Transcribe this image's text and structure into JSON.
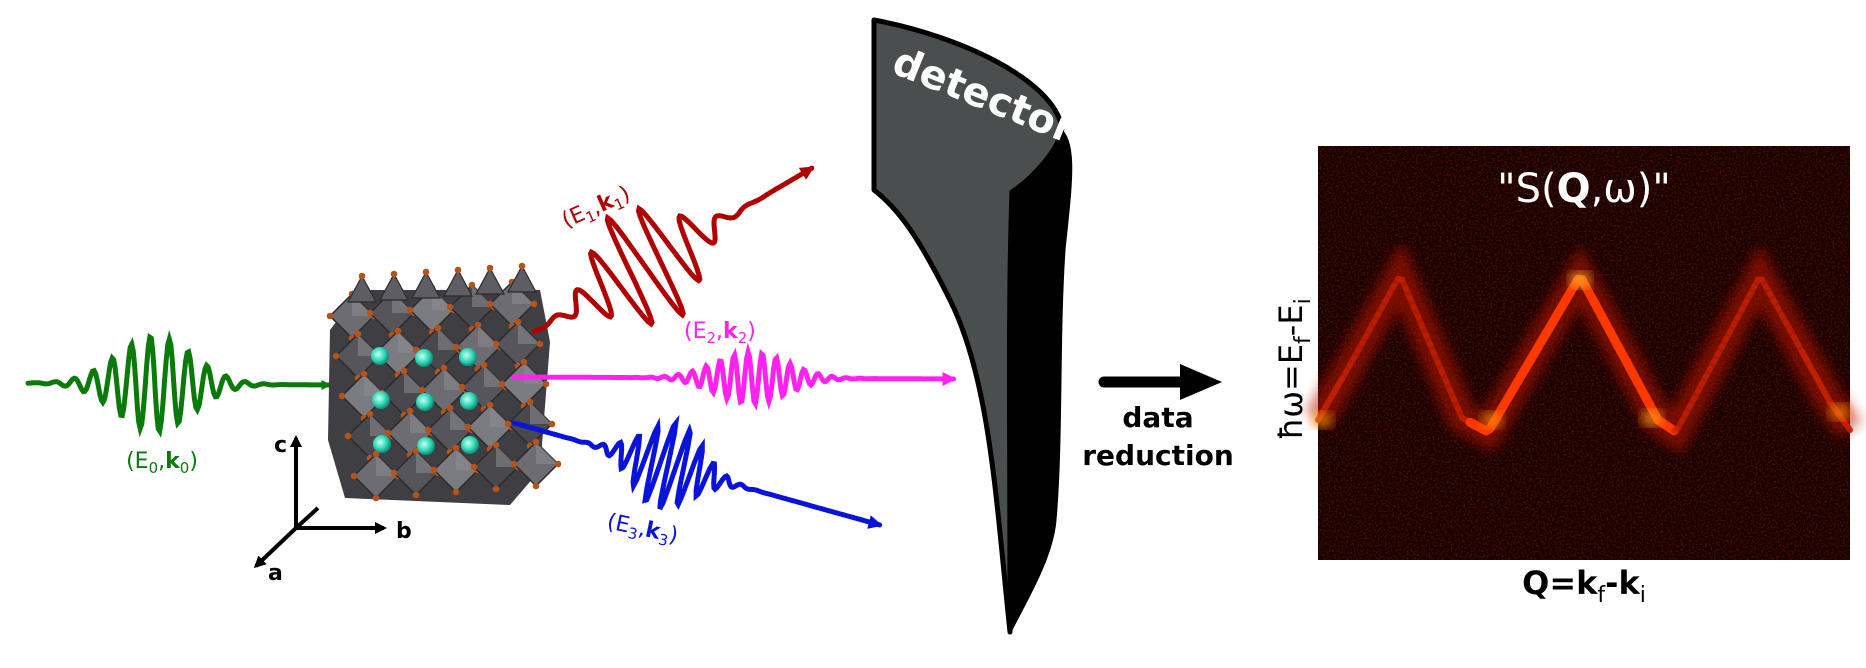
{
  "incident": {
    "energy": "E",
    "sub": "0",
    "wavevector": "k",
    "color": "#0a7a0a"
  },
  "scattered": [
    {
      "energy": "E",
      "sub": "1",
      "wavevector": "k",
      "color": "#b00000"
    },
    {
      "energy": "E",
      "sub": "2",
      "wavevector": "k",
      "color": "#ff22ee"
    },
    {
      "energy": "E",
      "sub": "3",
      "wavevector": "k",
      "color": "#0a14d8"
    }
  ],
  "axes": {
    "a": "a",
    "b": "b",
    "c": "c"
  },
  "detector": {
    "label": "detector"
  },
  "arrow": {
    "line1": "data",
    "line2": "reduction"
  },
  "spectrum": {
    "title_pre": "\"S(",
    "title_bold": "Q",
    "title_post": ",ω)\"",
    "ylabel": "ħω=E",
    "ylabel_sub1": "f",
    "ylabel_mid": "-E",
    "ylabel_sub2": "i",
    "xlabel_q": "Q=k",
    "xlabel_sub1": "f",
    "xlabel_mid": "-k",
    "xlabel_sub2": "i"
  },
  "crystal": {
    "atom_color": "#3fe0c0",
    "octahedron_color": "#5a5a5e",
    "oxygen_color": "#b5541a"
  }
}
